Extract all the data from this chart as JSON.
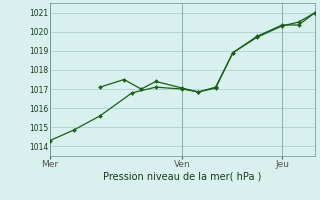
{
  "background_color": "#d8f0ee",
  "grid_color": "#b0d0cc",
  "line_color": "#1a5e1a",
  "title": "Pression niveau de la mer( hPa )",
  "ylim": [
    1013.5,
    1021.5
  ],
  "yticks": [
    1014,
    1015,
    1016,
    1017,
    1018,
    1019,
    1020,
    1021
  ],
  "x_tick_labels": [
    "Mer",
    "Ven",
    "Jeu"
  ],
  "x_tick_positions": [
    0.0,
    0.5,
    0.875
  ],
  "x_vlines": [
    0.0,
    0.5,
    0.875
  ],
  "line1_x": [
    0.0,
    0.09,
    0.19,
    0.31,
    0.4,
    0.5,
    0.56,
    0.625,
    0.69,
    0.78,
    0.875,
    0.9375,
    1.0
  ],
  "line1_y": [
    1014.3,
    1014.85,
    1015.6,
    1016.8,
    1017.1,
    1017.0,
    1016.85,
    1017.05,
    1018.9,
    1019.7,
    1020.3,
    1020.5,
    1021.0
  ],
  "line2_x": [
    0.19,
    0.28,
    0.345,
    0.4,
    0.5,
    0.56,
    0.625,
    0.69,
    0.78,
    0.875,
    0.9375,
    1.0
  ],
  "line2_y": [
    1017.1,
    1017.5,
    1017.0,
    1017.4,
    1017.05,
    1016.85,
    1017.1,
    1018.9,
    1019.75,
    1020.35,
    1020.35,
    1021.0
  ],
  "xlim": [
    0.0,
    1.0
  ]
}
